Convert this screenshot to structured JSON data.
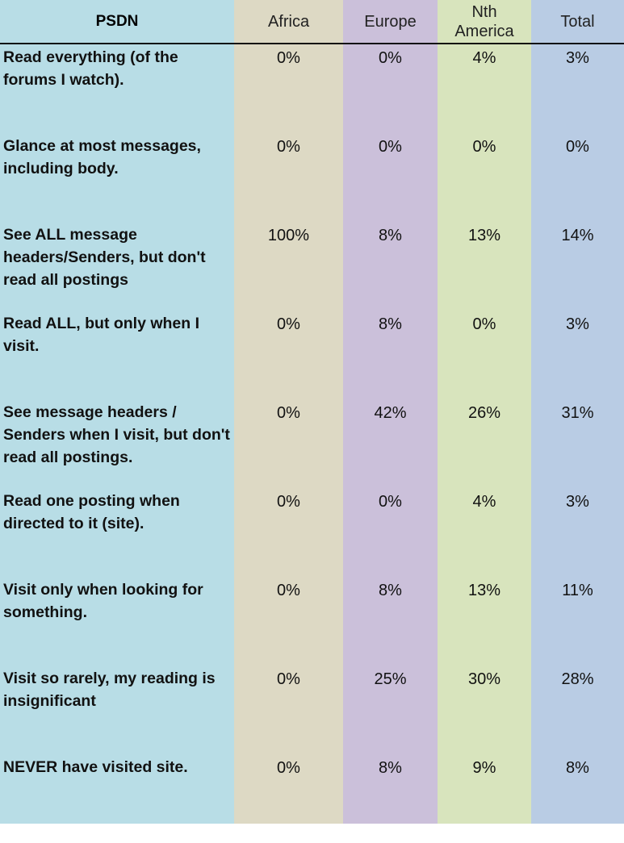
{
  "colors": {
    "label_col": "#b8dde6",
    "africa": "#ddd9c4",
    "europe": "#cbc0da",
    "nth_america": "#d8e4bd",
    "total": "#b9cce4"
  },
  "chart_data": {
    "type": "table",
    "columns": [
      "PSDN",
      "Africa",
      "Europe",
      "Nth America",
      "Total"
    ],
    "rows": [
      {
        "label": "Read everything (of the forums I watch).",
        "values": [
          "0%",
          "0%",
          "4%",
          "3%"
        ]
      },
      {
        "label": "Glance at most messages, including body.",
        "values": [
          "0%",
          "0%",
          "0%",
          "0%"
        ]
      },
      {
        "label": "See ALL message headers/Senders, but don't read all postings",
        "values": [
          "100%",
          "8%",
          "13%",
          "14%"
        ]
      },
      {
        "label": "Read ALL, but only when I visit.",
        "values": [
          "0%",
          "8%",
          "0%",
          "3%"
        ]
      },
      {
        "label": "See message headers / Senders when I visit, but don't read all postings.",
        "values": [
          "0%",
          "42%",
          "26%",
          "31%"
        ]
      },
      {
        "label": "Read one posting when directed to it (site).",
        "values": [
          "0%",
          "0%",
          "4%",
          "3%"
        ]
      },
      {
        "label": "Visit only when looking for something.",
        "values": [
          "0%",
          "8%",
          "13%",
          "11%"
        ]
      },
      {
        "label": "Visit so rarely, my reading is insignificant",
        "values": [
          "0%",
          "25%",
          "30%",
          "28%"
        ]
      },
      {
        "label": "NEVER have visited site.",
        "values": [
          "0%",
          "8%",
          "9%",
          "8%"
        ]
      }
    ]
  }
}
